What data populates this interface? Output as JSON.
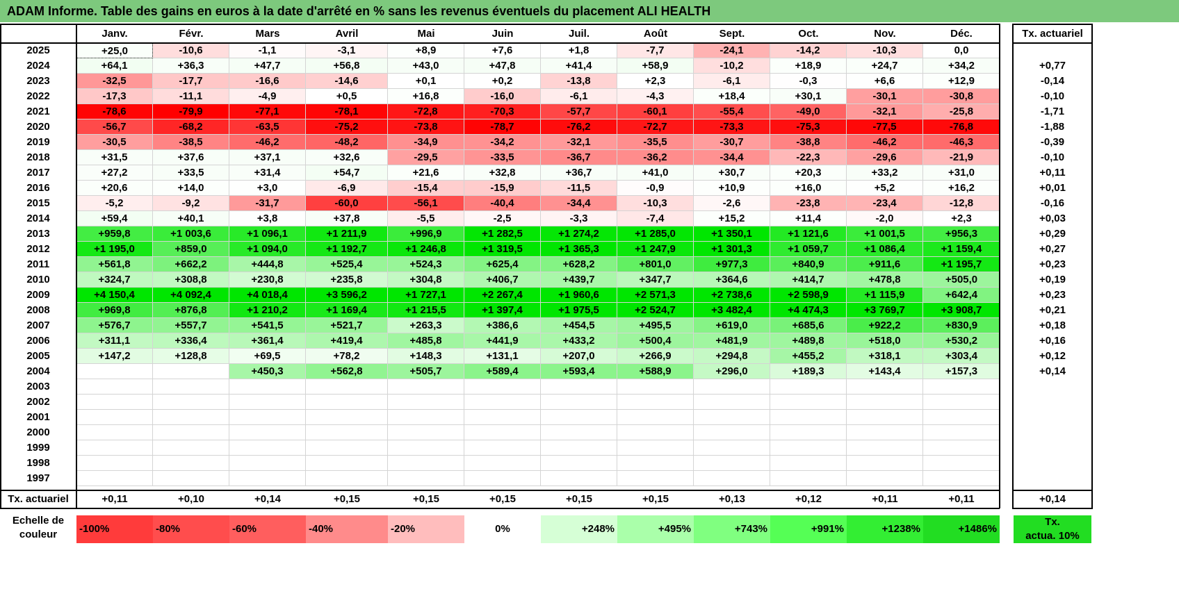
{
  "title": "ADAM Informe. Table des gains en euros à la date d'arrêté en % sans les revenus éventuels du placement ALI HEALTH",
  "months": [
    "Janv.",
    "Févr.",
    "Mars",
    "Avril",
    "Mai",
    "Juin",
    "Juil.",
    "Août",
    "Sept.",
    "Oct.",
    "Nov.",
    "Déc."
  ],
  "annual_header": "Tx. actuariel",
  "rows": [
    {
      "year": "2025",
      "values": [
        "+25,0",
        "-10,6",
        "-1,1",
        "-3,1",
        "+8,9",
        "+7,6",
        "+1,8",
        "-7,7",
        "-24,1",
        "-14,2",
        "-10,3",
        "0,0"
      ],
      "annual": ""
    },
    {
      "year": "2024",
      "values": [
        "+64,1",
        "+36,3",
        "+47,7",
        "+56,8",
        "+43,0",
        "+47,8",
        "+41,4",
        "+58,9",
        "-10,2",
        "+18,9",
        "+24,7",
        "+34,2"
      ],
      "annual": "+0,77"
    },
    {
      "year": "2023",
      "values": [
        "-32,5",
        "-17,7",
        "-16,6",
        "-14,6",
        "+0,1",
        "+0,2",
        "-13,8",
        "+2,3",
        "-6,1",
        "-0,3",
        "+6,6",
        "+12,9"
      ],
      "annual": "-0,14"
    },
    {
      "year": "2022",
      "values": [
        "-17,3",
        "-11,1",
        "-4,9",
        "+0,5",
        "+16,8",
        "-16,0",
        "-6,1",
        "-4,3",
        "+18,4",
        "+30,1",
        "-30,1",
        "-30,8"
      ],
      "annual": "-0,10"
    },
    {
      "year": "2021",
      "values": [
        "-78,6",
        "-79,9",
        "-77,1",
        "-78,1",
        "-72,8",
        "-70,3",
        "-57,7",
        "-60,1",
        "-55,4",
        "-49,0",
        "-32,1",
        "-25,8"
      ],
      "annual": "-1,71"
    },
    {
      "year": "2020",
      "values": [
        "-56,7",
        "-68,2",
        "-63,5",
        "-75,2",
        "-73,8",
        "-78,7",
        "-76,2",
        "-72,7",
        "-73,3",
        "-75,3",
        "-77,5",
        "-76,8"
      ],
      "annual": "-1,88"
    },
    {
      "year": "2019",
      "values": [
        "-30,5",
        "-38,5",
        "-46,2",
        "-48,2",
        "-34,9",
        "-34,2",
        "-32,1",
        "-35,5",
        "-30,7",
        "-38,8",
        "-46,2",
        "-46,3"
      ],
      "annual": "-0,39"
    },
    {
      "year": "2018",
      "values": [
        "+31,5",
        "+37,6",
        "+37,1",
        "+32,6",
        "-29,5",
        "-33,5",
        "-36,7",
        "-36,2",
        "-34,4",
        "-22,3",
        "-29,6",
        "-21,9"
      ],
      "annual": "-0,10"
    },
    {
      "year": "2017",
      "values": [
        "+27,2",
        "+33,5",
        "+31,4",
        "+54,7",
        "+21,6",
        "+32,8",
        "+36,7",
        "+41,0",
        "+30,7",
        "+20,3",
        "+33,2",
        "+31,0"
      ],
      "annual": "+0,11"
    },
    {
      "year": "2016",
      "values": [
        "+20,6",
        "+14,0",
        "+3,0",
        "-6,9",
        "-15,4",
        "-15,9",
        "-11,5",
        "-0,9",
        "+10,9",
        "+16,0",
        "+5,2",
        "+16,2"
      ],
      "annual": "+0,01"
    },
    {
      "year": "2015",
      "values": [
        "-5,2",
        "-9,2",
        "-31,7",
        "-60,0",
        "-56,1",
        "-40,4",
        "-34,4",
        "-10,3",
        "-2,6",
        "-23,8",
        "-23,4",
        "-12,8"
      ],
      "annual": "-0,16"
    },
    {
      "year": "2014",
      "values": [
        "+59,4",
        "+40,1",
        "+3,8",
        "+37,8",
        "-5,5",
        "-2,5",
        "-3,3",
        "-7,4",
        "+15,2",
        "+11,4",
        "-2,0",
        "+2,3"
      ],
      "annual": "+0,03"
    },
    {
      "year": "2013",
      "values": [
        "+959,8",
        "+1 003,6",
        "+1 096,1",
        "+1 211,9",
        "+996,9",
        "+1 282,5",
        "+1 274,2",
        "+1 285,0",
        "+1 350,1",
        "+1 121,6",
        "+1 001,5",
        "+956,3"
      ],
      "annual": "+0,29"
    },
    {
      "year": "2012",
      "values": [
        "+1 195,0",
        "+859,0",
        "+1 094,0",
        "+1 192,7",
        "+1 246,8",
        "+1 319,5",
        "+1 365,3",
        "+1 247,9",
        "+1 301,3",
        "+1 059,7",
        "+1 086,4",
        "+1 159,4"
      ],
      "annual": "+0,27"
    },
    {
      "year": "2011",
      "values": [
        "+561,8",
        "+662,2",
        "+444,8",
        "+525,4",
        "+524,3",
        "+625,4",
        "+628,2",
        "+801,0",
        "+977,3",
        "+840,9",
        "+911,6",
        "+1 195,7"
      ],
      "annual": "+0,23"
    },
    {
      "year": "2010",
      "values": [
        "+324,7",
        "+308,8",
        "+230,8",
        "+235,8",
        "+304,8",
        "+406,7",
        "+439,7",
        "+347,7",
        "+364,6",
        "+414,7",
        "+478,8",
        "+505,0"
      ],
      "annual": "+0,19"
    },
    {
      "year": "2009",
      "values": [
        "+4 150,4",
        "+4 092,4",
        "+4 018,4",
        "+3 596,2",
        "+1 727,1",
        "+2 267,4",
        "+1 960,6",
        "+2 571,3",
        "+2 738,6",
        "+2 598,9",
        "+1 115,9",
        "+642,4"
      ],
      "annual": "+0,23"
    },
    {
      "year": "2008",
      "values": [
        "+969,8",
        "+876,8",
        "+1 210,2",
        "+1 169,4",
        "+1 215,5",
        "+1 397,4",
        "+1 975,5",
        "+2 524,7",
        "+3 482,4",
        "+4 474,3",
        "+3 769,7",
        "+3 908,7"
      ],
      "annual": "+0,21"
    },
    {
      "year": "2007",
      "values": [
        "+576,7",
        "+557,7",
        "+541,5",
        "+521,7",
        "+263,3",
        "+386,6",
        "+454,5",
        "+495,5",
        "+619,0",
        "+685,6",
        "+922,2",
        "+830,9"
      ],
      "annual": "+0,18"
    },
    {
      "year": "2006",
      "values": [
        "+311,1",
        "+336,4",
        "+361,4",
        "+419,4",
        "+485,8",
        "+441,9",
        "+433,2",
        "+500,4",
        "+481,9",
        "+489,8",
        "+518,0",
        "+530,2"
      ],
      "annual": "+0,16"
    },
    {
      "year": "2005",
      "values": [
        "+147,2",
        "+128,8",
        "+69,5",
        "+78,2",
        "+148,3",
        "+131,1",
        "+207,0",
        "+266,9",
        "+294,8",
        "+455,2",
        "+318,1",
        "+303,4"
      ],
      "annual": "+0,12"
    },
    {
      "year": "2004",
      "values": [
        "",
        "",
        "+450,3",
        "+562,8",
        "+505,7",
        "+589,4",
        "+593,4",
        "+588,9",
        "+296,0",
        "+189,3",
        "+143,4",
        "+157,3"
      ],
      "annual": "+0,14"
    },
    {
      "year": "2003",
      "values": [
        "",
        "",
        "",
        "",
        "",
        "",
        "",
        "",
        "",
        "",
        "",
        ""
      ],
      "annual": ""
    },
    {
      "year": "2002",
      "values": [
        "",
        "",
        "",
        "",
        "",
        "",
        "",
        "",
        "",
        "",
        "",
        ""
      ],
      "annual": ""
    },
    {
      "year": "2001",
      "values": [
        "",
        "",
        "",
        "",
        "",
        "",
        "",
        "",
        "",
        "",
        "",
        ""
      ],
      "annual": ""
    },
    {
      "year": "2000",
      "values": [
        "",
        "",
        "",
        "",
        "",
        "",
        "",
        "",
        "",
        "",
        "",
        ""
      ],
      "annual": ""
    },
    {
      "year": "1999",
      "values": [
        "",
        "",
        "",
        "",
        "",
        "",
        "",
        "",
        "",
        "",
        "",
        ""
      ],
      "annual": ""
    },
    {
      "year": "1998",
      "values": [
        "",
        "",
        "",
        "",
        "",
        "",
        "",
        "",
        "",
        "",
        "",
        ""
      ],
      "annual": ""
    },
    {
      "year": "1997",
      "values": [
        "",
        "",
        "",
        "",
        "",
        "",
        "",
        "",
        "",
        "",
        "",
        ""
      ],
      "annual": ""
    }
  ],
  "footer": {
    "label": "Tx. actuariel",
    "values": [
      "+0,11",
      "+0,10",
      "+0,14",
      "+0,15",
      "+0,15",
      "+0,15",
      "+0,15",
      "+0,15",
      "+0,13",
      "+0,12",
      "+0,11",
      "+0,11"
    ],
    "annual": "+0,14"
  },
  "scale": {
    "label_line1": "Echelle de",
    "label_line2": "couleur",
    "items": [
      {
        "text": "-100%",
        "align": "left",
        "color": "#ff3b3b"
      },
      {
        "text": "-80%",
        "align": "left",
        "color": "#ff4d4d"
      },
      {
        "text": "-60%",
        "align": "left",
        "color": "#ff5e5e"
      },
      {
        "text": "-40%",
        "align": "left",
        "color": "#ff8b8b"
      },
      {
        "text": "-20%",
        "align": "left",
        "color": "#ffbdbd"
      },
      {
        "text": "0%",
        "align": "center",
        "color": "#ffffff"
      },
      {
        "text": "+248%",
        "align": "right",
        "color": "#d6ffd6"
      },
      {
        "text": "+495%",
        "align": "right",
        "color": "#aaffaa"
      },
      {
        "text": "+743%",
        "align": "right",
        "color": "#80ff80"
      },
      {
        "text": "+991%",
        "align": "right",
        "color": "#55ff55"
      },
      {
        "text": "+1238%",
        "align": "right",
        "color": "#33ee33"
      },
      {
        "text": "+1486%",
        "align": "right",
        "color": "#22dd22"
      }
    ],
    "annual_line1": "Tx.",
    "annual_line2": "actua. 10%",
    "annual_color": "#22dd22"
  },
  "colors": {
    "title_bg": "#7dc97d",
    "negative_full": "#ff0000",
    "positive_full": "#00e600"
  }
}
